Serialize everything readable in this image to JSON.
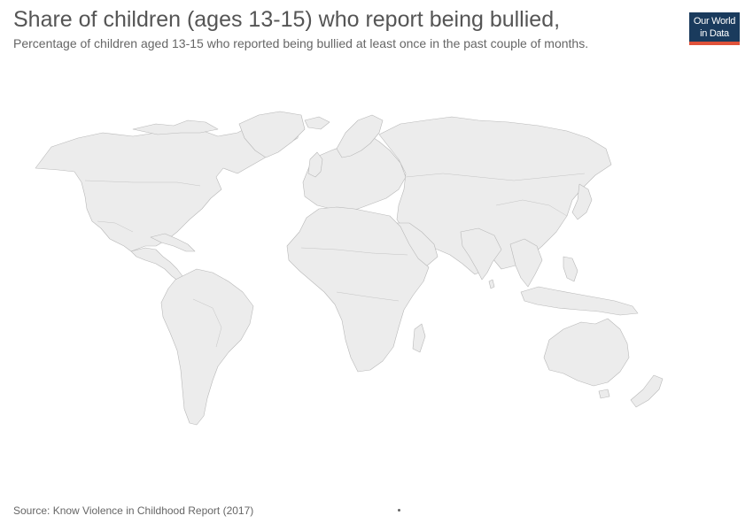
{
  "header": {
    "title": "Share of children (ages 13-15) who report being bullied,",
    "subtitle": "Percentage of children aged 13-15 who reported being bullied at least once in the past couple of months."
  },
  "logo": {
    "line1": "Our World",
    "line2": "in Data",
    "background_color": "#1a3b5d",
    "accent_color": "#e0523a"
  },
  "map": {
    "land_fill_color": "#ececec",
    "border_color": "#b8b8b8"
  },
  "footer": {
    "source": "Source: Know Violence in Childhood Report (2017)"
  }
}
